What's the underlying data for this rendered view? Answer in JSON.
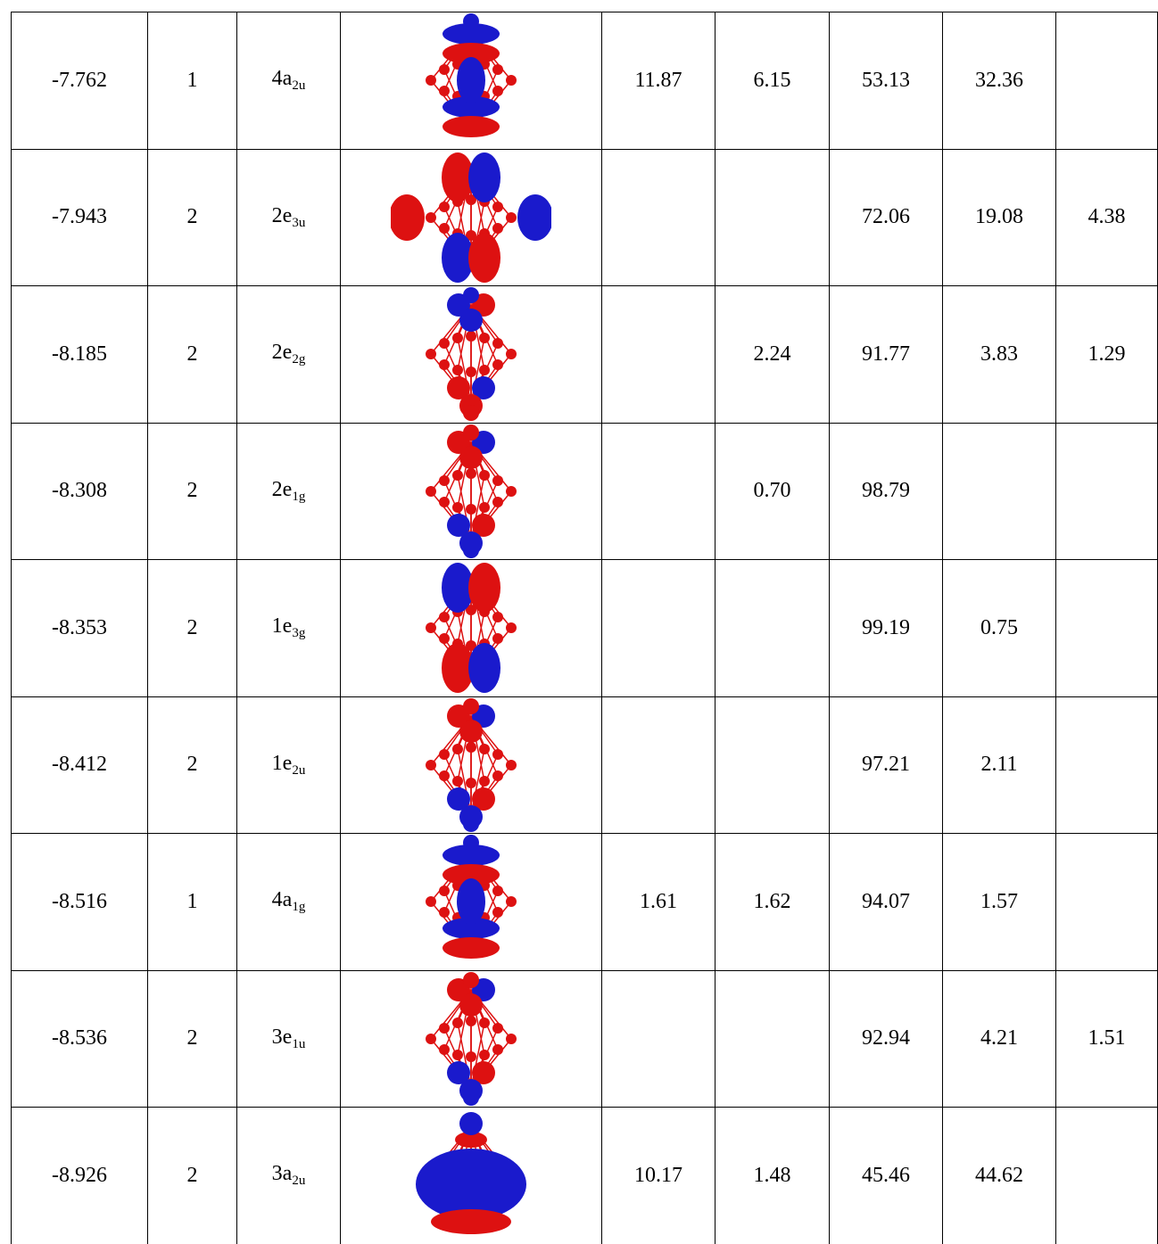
{
  "table": {
    "rows": [
      [
        "-7.762",
        "1",
        {
          "main": "4a",
          "sub": "2u"
        },
        "11.87",
        "6.15",
        "53.13",
        "32.36",
        null
      ],
      [
        "-7.943",
        "2",
        {
          "main": "2e",
          "sub": "3u"
        },
        null,
        null,
        "72.06",
        "19.08",
        "4.38"
      ],
      [
        "-8.185",
        "2",
        {
          "main": "2e",
          "sub": "2g"
        },
        null,
        "2.24",
        "91.77",
        "3.83",
        "1.29"
      ],
      [
        "-8.308",
        "2",
        {
          "main": "2e",
          "sub": "1g"
        },
        null,
        "0.70",
        "98.79",
        null,
        null
      ],
      [
        "-8.353",
        "2",
        {
          "main": "1e",
          "sub": "3g"
        },
        null,
        null,
        "99.19",
        "0.75",
        null
      ],
      [
        "-8.412",
        "2",
        {
          "main": "1e",
          "sub": "2u"
        },
        null,
        null,
        "97.21",
        "2.11",
        null
      ],
      [
        "-8.516",
        "1",
        {
          "main": "4a",
          "sub": "1g"
        },
        "1.61",
        "1.62",
        "94.07",
        "1.57",
        null
      ],
      [
        "-8.536",
        "2",
        {
          "main": "3e",
          "sub": "1u"
        },
        null,
        null,
        "92.94",
        "4.21",
        "1.51"
      ],
      [
        "-8.926",
        "2",
        {
          "main": "3a",
          "sub": "2u"
        },
        "10.17",
        "1.48",
        "45.46",
        "44.62",
        null
      ]
    ]
  }
}
